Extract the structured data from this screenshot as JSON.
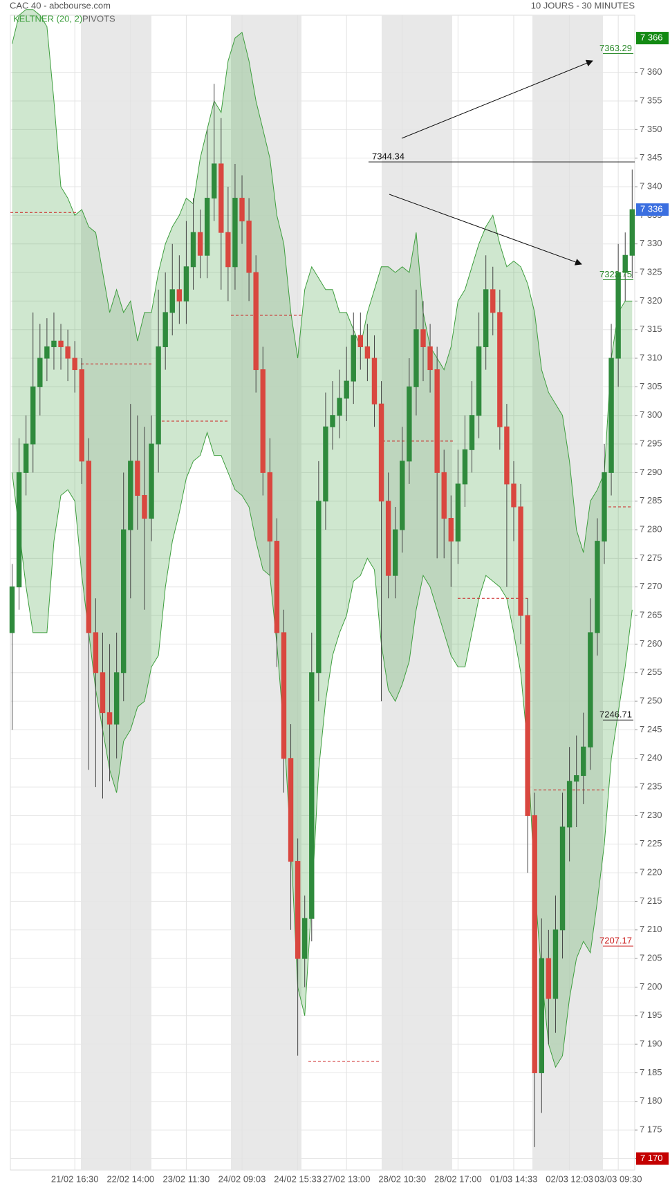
{
  "chart_data": {
    "type": "candlestick",
    "title": "CAC 40 - abcbourse.com",
    "subtitle": "10 JOURS - 30 MINUTES",
    "categories": [
      null,
      null,
      null,
      null,
      null,
      null,
      null,
      null,
      null,
      "21/02 16:30",
      null,
      null,
      null,
      null,
      null,
      null,
      null,
      "22/02 14:00",
      null,
      null,
      null,
      null,
      null,
      null,
      null,
      "23/02 11:30",
      null,
      null,
      null,
      null,
      null,
      null,
      null,
      "24/02 09:03",
      null,
      null,
      null,
      null,
      null,
      null,
      null,
      "24/02 15:33",
      null,
      null,
      null,
      null,
      null,
      null,
      "27/02 13:00",
      null,
      null,
      null,
      null,
      null,
      null,
      null,
      "28/02 10:30",
      null,
      null,
      null,
      null,
      null,
      null,
      null,
      "28/02 17:00",
      null,
      null,
      null,
      null,
      null,
      null,
      null,
      "01/03 14:33",
      null,
      null,
      null,
      null,
      null,
      null,
      null,
      "02/03 12:03",
      null,
      null,
      null,
      null,
      null,
      null,
      "03/03 09:30",
      null,
      null
    ],
    "open": [
      7262,
      7270,
      7290,
      7295,
      7305,
      7310,
      7312,
      7313,
      7312,
      7310,
      7308,
      7292,
      7262,
      7255,
      7248,
      7246,
      7255,
      7280,
      7292,
      7286,
      7282,
      7295,
      7312,
      7318,
      7322,
      7320,
      7326,
      7332,
      7328,
      7338,
      7344,
      7332,
      7326,
      7338,
      7334,
      7325,
      7308,
      7290,
      7278,
      7262,
      7240,
      7222,
      7205,
      7212,
      7255,
      7285,
      7298,
      7300,
      7303,
      7306,
      7314,
      7312,
      7310,
      7302,
      7285,
      7272,
      7280,
      7292,
      7305,
      7315,
      7312,
      7308,
      7290,
      7282,
      7278,
      7288,
      7294,
      7300,
      7312,
      7322,
      7318,
      7298,
      7288,
      7284,
      7265,
      7230,
      7185,
      7205,
      7198,
      7210,
      7228,
      7236,
      7237,
      7242,
      7262,
      7278,
      7290,
      7310,
      7325,
      7328
    ],
    "high": [
      7274,
      7296,
      7300,
      7318,
      7316,
      7317,
      7318,
      7316,
      7315,
      7313,
      7310,
      7296,
      7268,
      7262,
      7260,
      7262,
      7290,
      7302,
      7300,
      7298,
      7300,
      7322,
      7325,
      7330,
      7328,
      7334,
      7338,
      7336,
      7350,
      7358,
      7352,
      7340,
      7344,
      7342,
      7338,
      7328,
      7312,
      7296,
      7282,
      7266,
      7246,
      7226,
      7216,
      7262,
      7292,
      7304,
      7306,
      7308,
      7312,
      7318,
      7318,
      7316,
      7314,
      7306,
      7290,
      7284,
      7298,
      7310,
      7322,
      7320,
      7316,
      7312,
      7294,
      7286,
      7294,
      7300,
      7306,
      7318,
      7328,
      7326,
      7322,
      7302,
      7292,
      7288,
      7268,
      7234,
      7212,
      7210,
      7216,
      7234,
      7242,
      7244,
      7248,
      7268,
      7282,
      7295,
      7316,
      7330,
      7332,
      7343
    ],
    "low": [
      7245,
      7266,
      7286,
      7290,
      7300,
      7306,
      7308,
      7308,
      7306,
      7304,
      7288,
      7238,
      7235,
      7233,
      7236,
      7240,
      7250,
      7268,
      7280,
      7266,
      7278,
      7290,
      7308,
      7314,
      7316,
      7316,
      7322,
      7324,
      7324,
      7334,
      7322,
      7320,
      7322,
      7330,
      7320,
      7304,
      7286,
      7272,
      7256,
      7234,
      7210,
      7188,
      7200,
      7208,
      7250,
      7280,
      7294,
      7296,
      7299,
      7302,
      7308,
      7306,
      7298,
      7250,
      7268,
      7268,
      7276,
      7288,
      7300,
      7306,
      7304,
      7275,
      7275,
      7270,
      7274,
      7284,
      7290,
      7296,
      7308,
      7314,
      7294,
      7270,
      7278,
      7260,
      7220,
      7172,
      7178,
      7190,
      7192,
      7205,
      7222,
      7228,
      7232,
      7238,
      7258,
      7274,
      7286,
      7305,
      7320,
      7324
    ],
    "close": [
      7270,
      7290,
      7295,
      7305,
      7310,
      7312,
      7313,
      7312,
      7310,
      7308,
      7292,
      7262,
      7255,
      7248,
      7246,
      7255,
      7280,
      7292,
      7286,
      7282,
      7295,
      7312,
      7318,
      7322,
      7320,
      7326,
      7332,
      7328,
      7338,
      7344,
      7332,
      7326,
      7338,
      7334,
      7325,
      7308,
      7290,
      7278,
      7262,
      7240,
      7222,
      7205,
      7212,
      7255,
      7285,
      7298,
      7300,
      7303,
      7306,
      7314,
      7312,
      7310,
      7302,
      7285,
      7272,
      7280,
      7292,
      7305,
      7315,
      7312,
      7308,
      7290,
      7282,
      7278,
      7288,
      7294,
      7300,
      7312,
      7322,
      7318,
      7298,
      7288,
      7284,
      7265,
      7230,
      7185,
      7205,
      7198,
      7210,
      7228,
      7236,
      7237,
      7242,
      7262,
      7278,
      7290,
      7310,
      7325,
      7328,
      7336
    ],
    "up_color": "#2f8a3c",
    "down_color": "#d9473f",
    "ylim": [
      7168,
      7370
    ],
    "yticks": [
      {
        "value": 7170,
        "label": "7 170"
      },
      {
        "value": 7175,
        "label": "7 175"
      },
      {
        "value": 7180,
        "label": "7 180"
      },
      {
        "value": 7185,
        "label": "7 185"
      },
      {
        "value": 7190,
        "label": "7 190"
      },
      {
        "value": 7195,
        "label": "7 195"
      },
      {
        "value": 7200,
        "label": "7 200"
      },
      {
        "value": 7205,
        "label": "7 205"
      },
      {
        "value": 7210,
        "label": "7 210"
      },
      {
        "value": 7215,
        "label": "7 215"
      },
      {
        "value": 7220,
        "label": "7 220"
      },
      {
        "value": 7225,
        "label": "7 225"
      },
      {
        "value": 7230,
        "label": "7 230"
      },
      {
        "value": 7235,
        "label": "7 235"
      },
      {
        "value": 7240,
        "label": "7 240"
      },
      {
        "value": 7245,
        "label": "7 245"
      },
      {
        "value": 7250,
        "label": "7 250"
      },
      {
        "value": 7255,
        "label": "7 255"
      },
      {
        "value": 7260,
        "label": "7 260"
      },
      {
        "value": 7265,
        "label": "7 265"
      },
      {
        "value": 7270,
        "label": "7 270"
      },
      {
        "value": 7275,
        "label": "7 275"
      },
      {
        "value": 7280,
        "label": "7 280"
      },
      {
        "value": 7285,
        "label": "7 285"
      },
      {
        "value": 7290,
        "label": "7 290"
      },
      {
        "value": 7295,
        "label": "7 295"
      },
      {
        "value": 7300,
        "label": "7 300"
      },
      {
        "value": 7305,
        "label": "7 305"
      },
      {
        "value": 7310,
        "label": "7 310"
      },
      {
        "value": 7315,
        "label": "7 315"
      },
      {
        "value": 7320,
        "label": "7 320"
      },
      {
        "value": 7325,
        "label": "7 325"
      },
      {
        "value": 7330,
        "label": "7 330"
      },
      {
        "value": 7335,
        "label": "7 335"
      },
      {
        "value": 7340,
        "label": "7 340"
      },
      {
        "value": 7345,
        "label": "7 345"
      },
      {
        "value": 7350,
        "label": "7 350"
      },
      {
        "value": 7355,
        "label": "7 355"
      },
      {
        "value": 7360,
        "label": "7 360"
      }
    ],
    "grid": true,
    "keltner": {
      "name": "KELTNER (20, 2)",
      "color": "#3e9e3e",
      "upper": [
        7365,
        7370,
        7371,
        7371,
        7370,
        7368,
        7355,
        7340,
        7338,
        7335,
        7336,
        7333,
        7332,
        7325,
        7318,
        7322,
        7318,
        7320,
        7313,
        7318,
        7318,
        7325,
        7330,
        7333,
        7335,
        7338,
        7337,
        7345,
        7350,
        7355,
        7353,
        7362,
        7366,
        7367,
        7362,
        7355,
        7350,
        7345,
        7335,
        7330,
        7318,
        7310,
        7322,
        7326,
        7324,
        7322,
        7322,
        7318,
        7318,
        7315,
        7312,
        7318,
        7322,
        7326,
        7326,
        7325,
        7326,
        7325,
        7332,
        7318,
        7312,
        7310,
        7308,
        7312,
        7320,
        7322,
        7326,
        7330,
        7333,
        7335,
        7330,
        7326,
        7327,
        7326,
        7323,
        7318,
        7308,
        7304,
        7302,
        7300,
        7292,
        7280,
        7276,
        7285,
        7287,
        7290,
        7310,
        7318,
        7320,
        7320
      ],
      "lower": [
        7290,
        7280,
        7270,
        7262,
        7262,
        7262,
        7278,
        7286,
        7287,
        7285,
        7272,
        7262,
        7252,
        7245,
        7238,
        7234,
        7243,
        7245,
        7249,
        7250,
        7256,
        7258,
        7270,
        7278,
        7283,
        7289,
        7292,
        7293,
        7297,
        7293,
        7293,
        7290,
        7287,
        7286,
        7284,
        7278,
        7273,
        7272,
        7260,
        7245,
        7225,
        7200,
        7195,
        7215,
        7238,
        7250,
        7258,
        7262,
        7265,
        7271,
        7272,
        7275,
        7273,
        7260,
        7252,
        7250,
        7253,
        7257,
        7266,
        7272,
        7270,
        7266,
        7262,
        7258,
        7256,
        7256,
        7262,
        7268,
        7272,
        7271,
        7270,
        7268,
        7262,
        7255,
        7242,
        7218,
        7202,
        7190,
        7186,
        7188,
        7198,
        7205,
        7208,
        7206,
        7215,
        7225,
        7240,
        7248,
        7256,
        7266
      ]
    },
    "pivots": {
      "name": "PIVOTS",
      "color": "#cc2222",
      "values": [
        7335.5,
        7309,
        7299,
        7317.5,
        7187,
        7295.5,
        7268,
        7234.5,
        7284
      ]
    },
    "levels": [
      {
        "value": 7363.29,
        "color": "#2a8a2a"
      },
      {
        "value": 7323.75,
        "color": "#2a8a2a"
      },
      {
        "value": 7246.71,
        "color": "#222222"
      },
      {
        "value": 7207.17,
        "color": "#cc2222"
      }
    ],
    "trendline": {
      "value": 7344.34
    },
    "price_tags": [
      {
        "value": 7366,
        "label": "7 366",
        "color": "#138a13"
      },
      {
        "value": 7336,
        "label": "7 336",
        "color": "#3b6fe0"
      },
      {
        "value": 7170,
        "label": "7 170",
        "color": "#c40000"
      }
    ]
  }
}
